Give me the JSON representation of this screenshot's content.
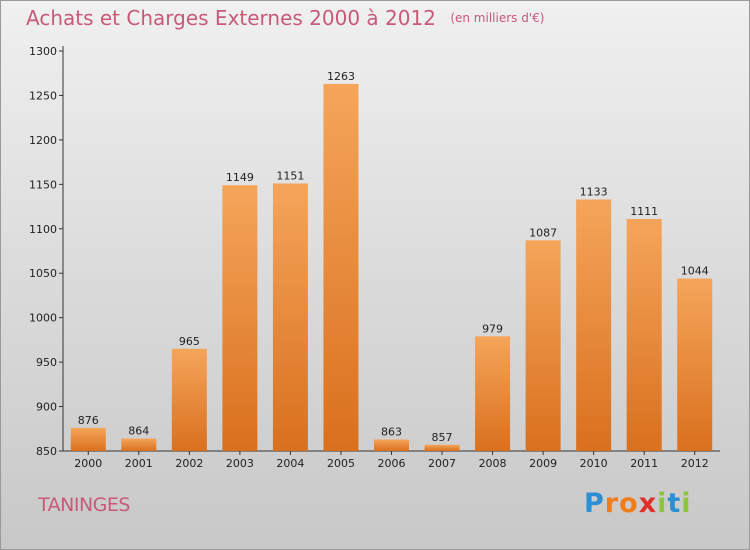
{
  "chart_data": {
    "type": "bar",
    "title": "Achats et Charges Externes 2000 à 2012",
    "subtitle": "(en milliers d'€)",
    "categories": [
      "2000",
      "2001",
      "2002",
      "2003",
      "2004",
      "2005",
      "2006",
      "2007",
      "2008",
      "2009",
      "2010",
      "2011",
      "2012"
    ],
    "values": [
      876,
      864,
      965,
      1149,
      1151,
      1263,
      863,
      857,
      979,
      1087,
      1133,
      1111,
      1044
    ],
    "ylim": [
      850,
      1300
    ],
    "yticks": [
      850,
      900,
      950,
      1000,
      1050,
      1100,
      1150,
      1200,
      1250,
      1300
    ],
    "grid": false,
    "bar_color_top": "#f5a55a",
    "bar_color_bottom": "#d9701e"
  },
  "location": "TANINGES",
  "brand": {
    "letters": [
      "P",
      "r",
      "o",
      "x",
      "i",
      "t",
      "i"
    ],
    "colors": [
      "#2b8fd6",
      "#f07d1a",
      "#f07d1a",
      "#e0302c",
      "#8cc63f",
      "#2b8fd6",
      "#8cc63f"
    ]
  }
}
